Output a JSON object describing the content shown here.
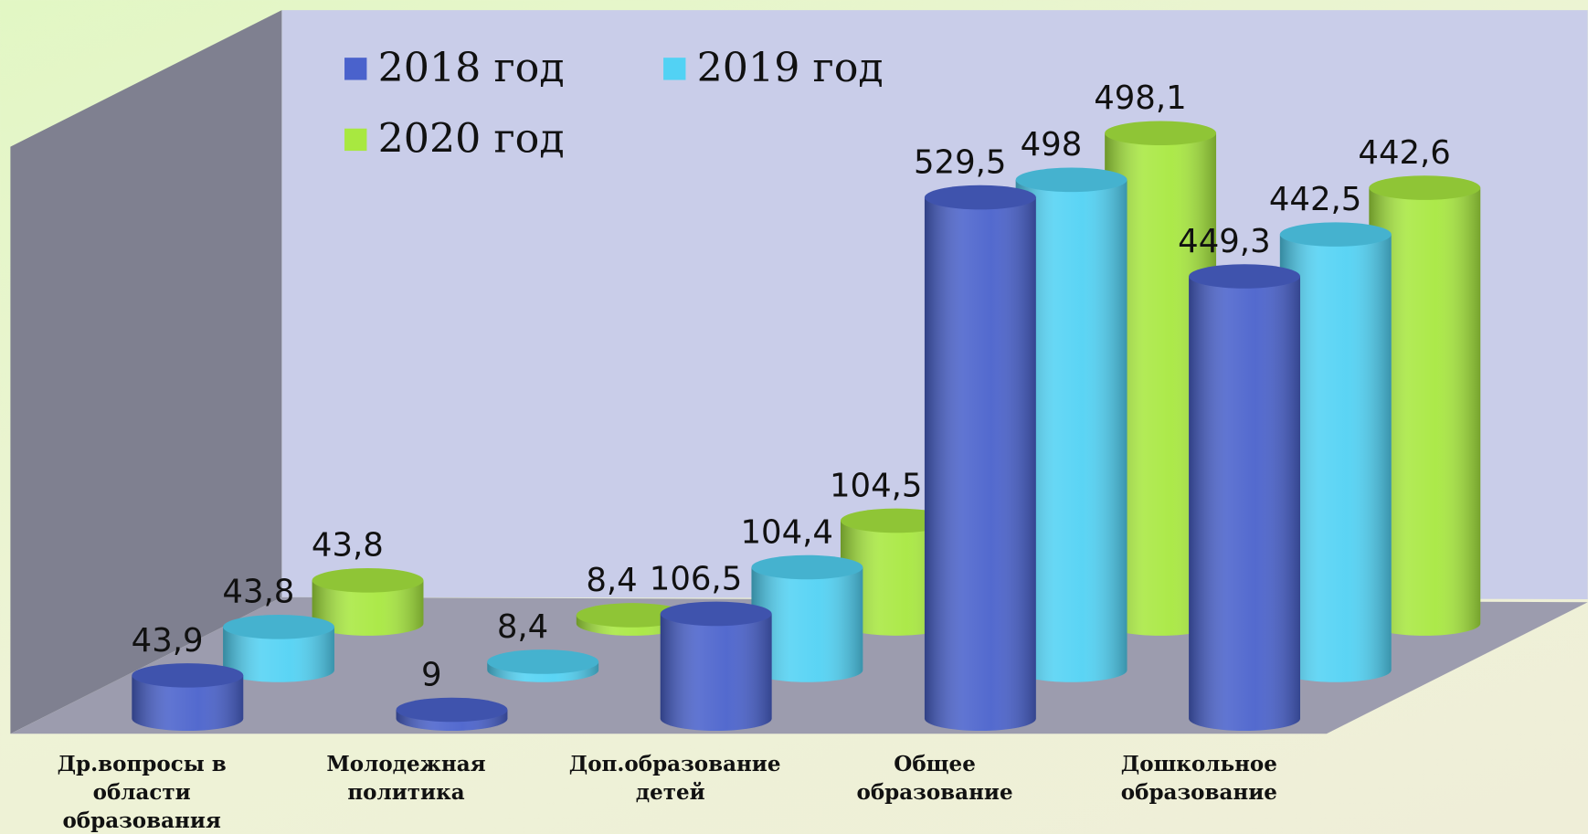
{
  "chart_data": {
    "type": "bar3d",
    "categories": [
      "Др.вопросы в области образования",
      "Молодежная политика",
      "Доп.образование детей",
      "Общее образование",
      "Дошкольное образование"
    ],
    "series": [
      {
        "name": "2018 год",
        "color": "#4a62cc",
        "values": [
          43.9,
          9,
          106.5,
          529.5,
          449.3
        ],
        "value_labels": [
          "43,9",
          "9",
          "106,5",
          "529,5",
          "449,3"
        ]
      },
      {
        "name": "2019 год",
        "color": "#52d2f4",
        "values": [
          43.8,
          8.4,
          104.4,
          498,
          442.5
        ],
        "value_labels": [
          "43,8",
          "8,4",
          "104,4",
          "498",
          "442,5"
        ]
      },
      {
        "name": "2020 год",
        "color": "#a8e840",
        "values": [
          43.8,
          8.4,
          104.5,
          498.1,
          442.6
        ],
        "value_labels": [
          "43,8",
          "8,4",
          "104,5",
          "498,1",
          "442,6"
        ]
      }
    ]
  }
}
